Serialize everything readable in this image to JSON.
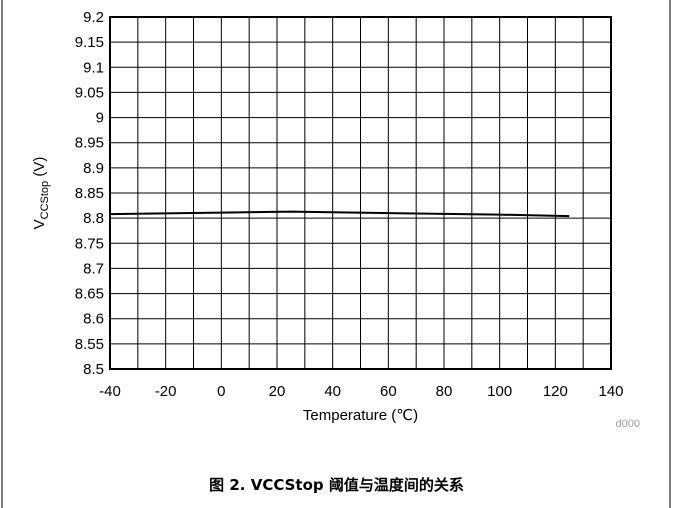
{
  "chart_data": {
    "type": "line",
    "xlabel": "Temperature (℃)",
    "ylabel_main": "V",
    "ylabel_sub": "CCStop",
    "ylabel_unit": " (V)",
    "xlim": [
      -40,
      140
    ],
    "ylim": [
      8.5,
      9.2
    ],
    "x_ticks": [
      -40,
      -20,
      0,
      20,
      40,
      60,
      80,
      100,
      120,
      140
    ],
    "x_tick_labels": [
      "-40",
      "-20",
      "0",
      "20",
      "40",
      "60",
      "80",
      "100",
      "120",
      "140"
    ],
    "y_ticks": [
      8.5,
      8.55,
      8.6,
      8.65,
      8.7,
      8.75,
      8.8,
      8.85,
      8.9,
      8.95,
      9,
      9.05,
      9.1,
      9.15,
      9.2
    ],
    "y_tick_labels": [
      "8.5",
      "8.55",
      "8.6",
      "8.65",
      "8.7",
      "8.75",
      "8.8",
      "8.85",
      "8.9",
      "8.95",
      "9",
      "9.05",
      "9.1",
      "9.15",
      "9.2"
    ],
    "x_minor_step": 10,
    "grid": true,
    "series": [
      {
        "x": [
          -40,
          0,
          25,
          60,
          100,
          125
        ],
        "y": [
          8.808,
          8.811,
          8.813,
          8.81,
          8.807,
          8.804
        ],
        "color": "#000000"
      }
    ],
    "code_label": "d000",
    "caption": "图 2. VCCStop 阈值与温度间的关系"
  }
}
